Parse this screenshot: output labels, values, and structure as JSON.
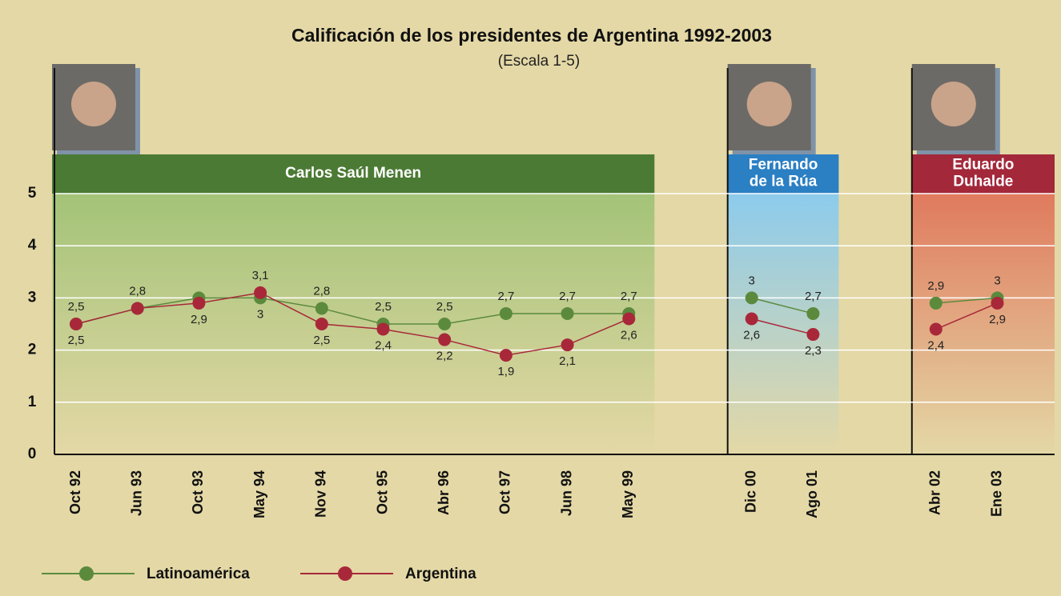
{
  "chart_data": {
    "type": "line",
    "title": "Calificación de los presidentes de Argentina 1992-2003",
    "subtitle": "(Escala 1-5)",
    "categories": [
      "Oct 92",
      "Jun 93",
      "Oct 93",
      "May 94",
      "Nov 94",
      "Oct 95",
      "Abr 96",
      "Oct 97",
      "Jun 98",
      "May 99",
      null,
      "Dic 00",
      "Ago 01",
      null,
      "Abr 02",
      "Ene 03"
    ],
    "series": [
      {
        "name": "Latinoamérica",
        "color": "#5b8a3d",
        "values": [
          2.5,
          2.8,
          3,
          3,
          2.8,
          2.5,
          2.5,
          2.7,
          2.7,
          2.7,
          null,
          3,
          2.7,
          null,
          2.9,
          3
        ],
        "value_labels": [
          "2,5",
          "2,8",
          null,
          "3",
          "2,8",
          "2,5",
          "2,5",
          "2,7",
          "2,7",
          "2,7",
          null,
          "3",
          "2,7",
          null,
          "2,9",
          "3"
        ]
      },
      {
        "name": "Argentina",
        "color": "#a8283a",
        "values": [
          2.5,
          2.8,
          2.9,
          3.1,
          2.5,
          2.4,
          2.2,
          1.9,
          2.1,
          2.6,
          null,
          2.6,
          2.3,
          null,
          2.4,
          2.9
        ],
        "value_labels": [
          "2,5",
          null,
          "2,9",
          "3,1",
          "2,5",
          "2,4",
          "2,2",
          "1,9",
          "2,1",
          "2,6",
          null,
          "2,6",
          "2,3",
          null,
          "2,4",
          "2,9"
        ]
      }
    ],
    "periods": [
      {
        "label": [
          "Carlos Saúl Menen"
        ],
        "color": "#4b7a34",
        "fill": "#a3c378"
      },
      {
        "label": [
          "Fernando",
          "de la Rúa"
        ],
        "color": "#2b7fc3",
        "fill": "#8ccbec"
      },
      {
        "label": [
          "Eduardo",
          "Duhalde"
        ],
        "color": "#a2283a",
        "fill": "#e07a5e"
      }
    ],
    "ylim": [
      0,
      5
    ],
    "yticks": [
      0,
      1,
      2,
      3,
      4,
      5
    ],
    "grid": true
  }
}
